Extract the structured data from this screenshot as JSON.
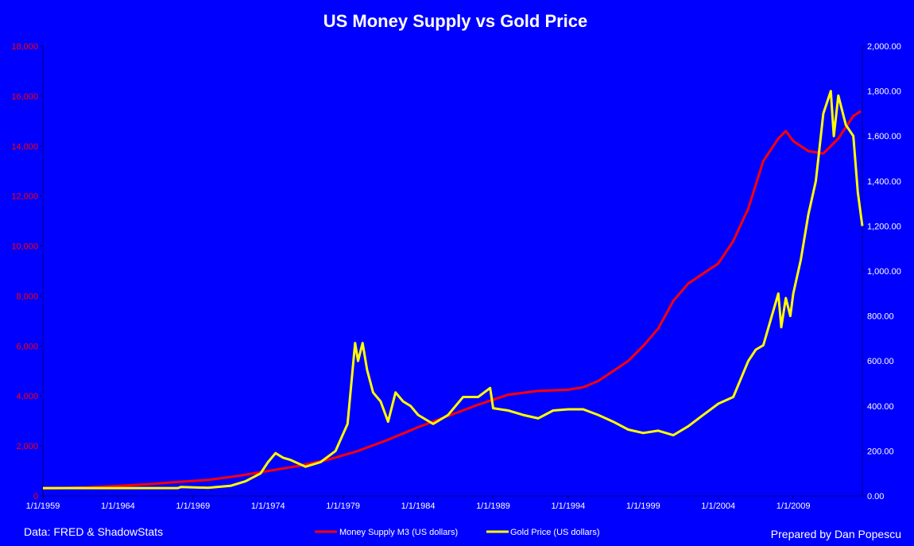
{
  "chart_data": {
    "type": "line",
    "title": "US Money Supply vs Gold Price",
    "x_tick_labels": [
      "1/1/1959",
      "1/1/1964",
      "1/1/1969",
      "1/1/1974",
      "1/1/1979",
      "1/1/1984",
      "1/1/1989",
      "1/1/1994",
      "1/1/1999",
      "1/1/2004",
      "1/1/2009"
    ],
    "x_range": [
      1959.0,
      2013.6
    ],
    "y_left": {
      "range": [
        0,
        18000
      ],
      "ticks": [
        0,
        2000,
        4000,
        6000,
        8000,
        10000,
        12000,
        14000,
        16000,
        18000
      ],
      "tick_labels": [
        "0",
        "2,000",
        "4,000",
        "6,000",
        "8,000",
        "10,000",
        "12,000",
        "14,000",
        "16,000",
        "18,000"
      ],
      "color": "#FF0000"
    },
    "y_right": {
      "range": [
        0,
        2000
      ],
      "ticks": [
        0,
        200,
        400,
        600,
        800,
        1000,
        1200,
        1400,
        1600,
        1800,
        2000
      ],
      "tick_labels": [
        "0.00",
        "200.00",
        "400.00",
        "600.00",
        "800.00",
        "1,000.00",
        "1,200.00",
        "1,400.00",
        "1,600.00",
        "1,800.00",
        "2,000.00"
      ],
      "color": "#FFFFFF"
    },
    "grid": false,
    "legend_position": "bottom-center",
    "series": [
      {
        "name": "Money Supply M3 (US dollars)",
        "axis": "left",
        "color": "#FF0000",
        "x": [
          1959,
          1960,
          1962,
          1964,
          1966,
          1968,
          1970,
          1972,
          1974,
          1976,
          1978,
          1980,
          1982,
          1984,
          1986,
          1988,
          1990,
          1992,
          1994,
          1995,
          1996,
          1998,
          1999,
          2000,
          2001,
          2002,
          2003,
          2004,
          2005,
          2006,
          2007,
          2008,
          2008.5,
          2009,
          2010,
          2011,
          2012,
          2013,
          2013.5
        ],
        "values": [
          300,
          310,
          340,
          400,
          470,
          560,
          640,
          800,
          1000,
          1200,
          1450,
          1800,
          2250,
          2750,
          3200,
          3650,
          4050,
          4200,
          4250,
          4350,
          4600,
          5400,
          6000,
          6700,
          7800,
          8500,
          8900,
          9300,
          10200,
          11500,
          13400,
          14300,
          14600,
          14200,
          13800,
          13700,
          14300,
          15200,
          15400
        ]
      },
      {
        "name": "Gold Price (US dollars)",
        "axis": "right",
        "color": "#FFFF00",
        "x": [
          1959,
          1968,
          1968.2,
          1970,
          1971.5,
          1972.5,
          1973.5,
          1974,
          1974.5,
          1975,
          1975.5,
          1976.5,
          1977.5,
          1978.5,
          1979.3,
          1979.8,
          1980,
          1980.3,
          1980.6,
          1981,
          1981.5,
          1982,
          1982.5,
          1983,
          1983.5,
          1984,
          1985,
          1986,
          1987,
          1988,
          1988.8,
          1989,
          1990,
          1991,
          1992,
          1993,
          1994,
          1995,
          1996,
          1997,
          1998,
          1999,
          2000,
          2001,
          2002,
          2003,
          2004,
          2005,
          2006,
          2006.5,
          2007,
          2008,
          2008.2,
          2008.5,
          2008.8,
          2009,
          2009.5,
          2010,
          2010.5,
          2011,
          2011.5,
          2011.7,
          2012,
          2012.5,
          2013,
          2013.3,
          2013.5,
          2013.6
        ],
        "values": [
          35,
          35,
          40,
          36,
          45,
          65,
          100,
          150,
          190,
          170,
          160,
          130,
          150,
          200,
          320,
          680,
          600,
          680,
          560,
          460,
          420,
          330,
          460,
          420,
          400,
          360,
          320,
          360,
          440,
          440,
          480,
          390,
          380,
          360,
          345,
          380,
          385,
          385,
          360,
          330,
          295,
          280,
          290,
          270,
          310,
          360,
          410,
          440,
          600,
          650,
          670,
          900,
          750,
          880,
          800,
          900,
          1050,
          1250,
          1400,
          1700,
          1800,
          1600,
          1780,
          1650,
          1600,
          1350,
          1250,
          1200
        ]
      }
    ]
  },
  "footer": {
    "source": "Data: FRED & ShadowStats",
    "credit": "Prepared by Dan Popescu"
  }
}
